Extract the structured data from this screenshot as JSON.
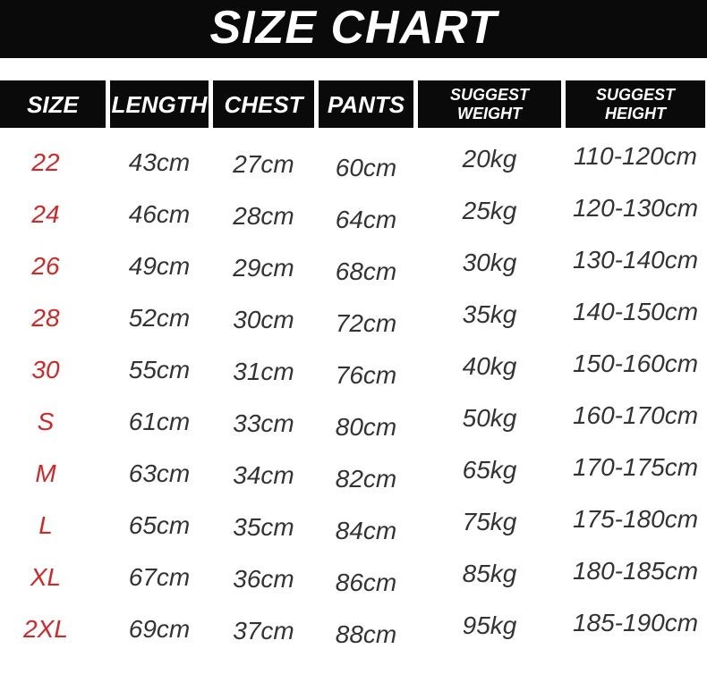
{
  "title": "SIZE CHART",
  "colors": {
    "banner_black": "#0a0a0a",
    "header_black": "#0a0a0a",
    "size_label_red": "#d32626",
    "value_text": "#333333",
    "background": "#ffffff"
  },
  "table": {
    "headers": [
      {
        "id": "size",
        "label": "SIZE"
      },
      {
        "id": "length",
        "label": "LENGTH"
      },
      {
        "id": "chest",
        "label": "CHEST"
      },
      {
        "id": "pants",
        "label": "PANTS"
      },
      {
        "id": "suggest_weight",
        "label": "SUGGEST WEIGHT",
        "line1": "SUGGEST",
        "line2": "WEIGHT"
      },
      {
        "id": "suggest_height",
        "label": "SUGGEST HEIGHT",
        "line1": "SUGGEST",
        "line2": "HEIGHT"
      }
    ],
    "rows": [
      {
        "size": "22",
        "length": "43cm",
        "chest": "27cm",
        "pants": "60cm",
        "weight": "20kg",
        "height": "110-120cm"
      },
      {
        "size": "24",
        "length": "46cm",
        "chest": "28cm",
        "pants": "64cm",
        "weight": "25kg",
        "height": "120-130cm"
      },
      {
        "size": "26",
        "length": "49cm",
        "chest": "29cm",
        "pants": "68cm",
        "weight": "30kg",
        "height": "130-140cm"
      },
      {
        "size": "28",
        "length": "52cm",
        "chest": "30cm",
        "pants": "72cm",
        "weight": "35kg",
        "height": "140-150cm"
      },
      {
        "size": "30",
        "length": "55cm",
        "chest": "31cm",
        "pants": "76cm",
        "weight": "40kg",
        "height": "150-160cm"
      },
      {
        "size": "S",
        "length": "61cm",
        "chest": "33cm",
        "pants": "80cm",
        "weight": "50kg",
        "height": "160-170cm"
      },
      {
        "size": "M",
        "length": "63cm",
        "chest": "34cm",
        "pants": "82cm",
        "weight": "65kg",
        "height": "170-175cm"
      },
      {
        "size": "L",
        "length": "65cm",
        "chest": "35cm",
        "pants": "84cm",
        "weight": "75kg",
        "height": "175-180cm"
      },
      {
        "size": "XL",
        "length": "67cm",
        "chest": "36cm",
        "pants": "86cm",
        "weight": "85kg",
        "height": "180-185cm"
      },
      {
        "size": "2XL",
        "length": "69cm",
        "chest": "37cm",
        "pants": "88cm",
        "weight": "95kg",
        "height": "185-190cm"
      }
    ]
  },
  "chart_data": {
    "type": "table",
    "title": "SIZE CHART",
    "columns": [
      "SIZE",
      "LENGTH",
      "CHEST",
      "PANTS",
      "SUGGEST WEIGHT",
      "SUGGEST HEIGHT"
    ],
    "rows": [
      [
        "22",
        "43cm",
        "27cm",
        "60cm",
        "20kg",
        "110-120cm"
      ],
      [
        "24",
        "46cm",
        "28cm",
        "64cm",
        "25kg",
        "120-130cm"
      ],
      [
        "26",
        "49cm",
        "29cm",
        "68cm",
        "30kg",
        "130-140cm"
      ],
      [
        "28",
        "52cm",
        "30cm",
        "72cm",
        "35kg",
        "140-150cm"
      ],
      [
        "30",
        "55cm",
        "31cm",
        "76cm",
        "40kg",
        "150-160cm"
      ],
      [
        "S",
        "61cm",
        "33cm",
        "80cm",
        "50kg",
        "160-170cm"
      ],
      [
        "M",
        "63cm",
        "34cm",
        "82cm",
        "65kg",
        "170-175cm"
      ],
      [
        "L",
        "65cm",
        "35cm",
        "84cm",
        "75kg",
        "175-180cm"
      ],
      [
        "XL",
        "67cm",
        "36cm",
        "86cm",
        "85kg",
        "180-185cm"
      ],
      [
        "2XL",
        "69cm",
        "37cm",
        "88cm",
        "95kg",
        "185-190cm"
      ]
    ]
  }
}
